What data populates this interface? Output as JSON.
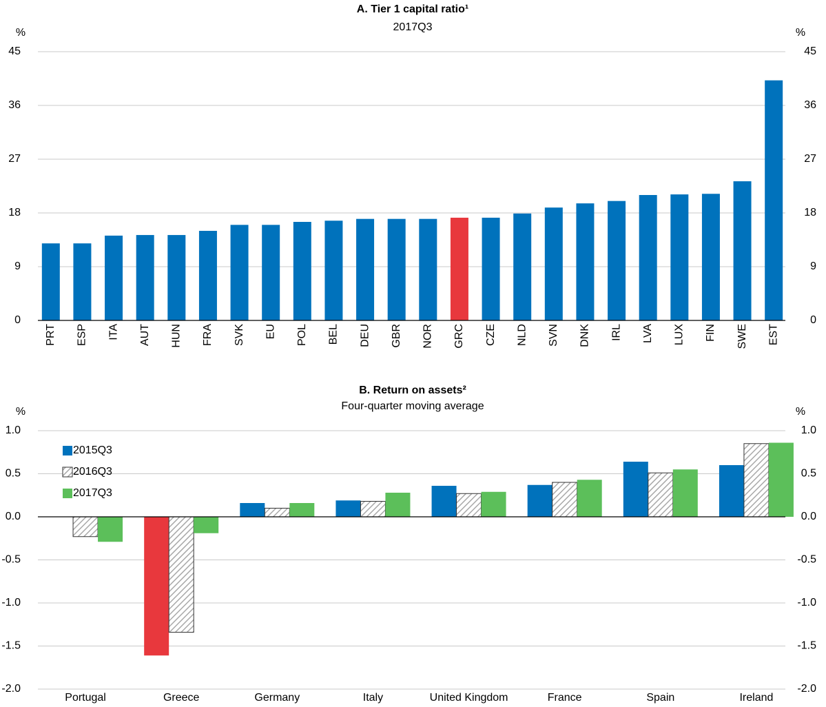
{
  "chart_data": [
    {
      "type": "bar",
      "title": "A. Tier 1 capital ratio¹",
      "subtitle": "2017Q3",
      "y_unit": "%",
      "y2_unit": "%",
      "categories": [
        "PRT",
        "ESP",
        "ITA",
        "AUT",
        "HUN",
        "FRA",
        "SVK",
        "EU",
        "POL",
        "BEL",
        "DEU",
        "GBR",
        "NOR",
        "GRC",
        "CZE",
        "NLD",
        "SVN",
        "DNK",
        "IRL",
        "LVA",
        "LUX",
        "FIN",
        "SWE",
        "EST"
      ],
      "values": [
        12.9,
        12.9,
        14.2,
        14.3,
        14.3,
        15.0,
        16.0,
        16.0,
        16.5,
        16.7,
        17.0,
        17.0,
        17.0,
        17.2,
        17.2,
        17.9,
        18.9,
        19.6,
        20.0,
        21.0,
        21.1,
        21.2,
        23.3,
        40.2
      ],
      "colors": [
        "#0072bc",
        "#0072bc",
        "#0072bc",
        "#0072bc",
        "#0072bc",
        "#0072bc",
        "#0072bc",
        "#0072bc",
        "#0072bc",
        "#0072bc",
        "#0072bc",
        "#0072bc",
        "#0072bc",
        "#e8383d",
        "#0072bc",
        "#0072bc",
        "#0072bc",
        "#0072bc",
        "#0072bc",
        "#0072bc",
        "#0072bc",
        "#0072bc",
        "#0072bc",
        "#0072bc"
      ],
      "ylim": [
        0,
        45
      ],
      "yticks": [
        0,
        9,
        18,
        27,
        36,
        45
      ],
      "y2lim": [
        0,
        45
      ],
      "y2ticks": [
        0,
        9,
        18,
        27,
        36,
        45
      ],
      "grid": true
    },
    {
      "type": "grouped_bar",
      "title": "B. Return on assets²",
      "subtitle": "Four-quarter moving average",
      "y_unit": "%",
      "y2_unit": "%",
      "categories": [
        "Portugal",
        "Greece",
        "Germany",
        "Italy",
        "United Kingdom",
        "France",
        "Spain",
        "Ireland"
      ],
      "series": [
        {
          "name": "2015Q3",
          "color": "#0072bc",
          "colors": [
            "#0072bc",
            "#e8383d",
            "#0072bc",
            "#0072bc",
            "#0072bc",
            "#0072bc",
            "#0072bc",
            "#0072bc"
          ],
          "values": [
            0.0,
            -1.61,
            0.16,
            0.19,
            0.36,
            0.37,
            0.64,
            0.6
          ]
        },
        {
          "name": "2016Q3",
          "color": "#c8c8c8",
          "pattern": "hatch",
          "values": [
            -0.23,
            -1.34,
            0.1,
            0.18,
            0.27,
            0.4,
            0.51,
            0.85
          ]
        },
        {
          "name": "2017Q3",
          "color": "#5cbf5a",
          "values": [
            -0.29,
            -0.19,
            0.16,
            0.28,
            0.29,
            0.43,
            0.55,
            0.86
          ]
        }
      ],
      "legend": "upper left",
      "ylim": [
        -2,
        1
      ],
      "yticks": [
        {
          "value": -2,
          "label": "-2.0"
        },
        {
          "value": -1.5,
          "label": "-1.5"
        },
        {
          "value": -1,
          "label": "-1.0"
        },
        {
          "value": -0.5,
          "label": "-0.5"
        },
        {
          "value": 0,
          "label": "0.0"
        },
        {
          "value": 0.5,
          "label": "0.5"
        },
        {
          "value": 1,
          "label": "1.0"
        }
      ],
      "y2lim": [
        -2,
        1
      ],
      "y2ticks": [
        {
          "value": -2,
          "label": "-2.0"
        },
        {
          "value": -1.5,
          "label": "-1.5"
        },
        {
          "value": -1,
          "label": "-1.0"
        },
        {
          "value": -0.5,
          "label": "-0.5"
        },
        {
          "value": 0,
          "label": "0.0"
        },
        {
          "value": 0.5,
          "label": "0.5"
        },
        {
          "value": 1,
          "label": "1.0"
        }
      ],
      "grid": true
    }
  ]
}
